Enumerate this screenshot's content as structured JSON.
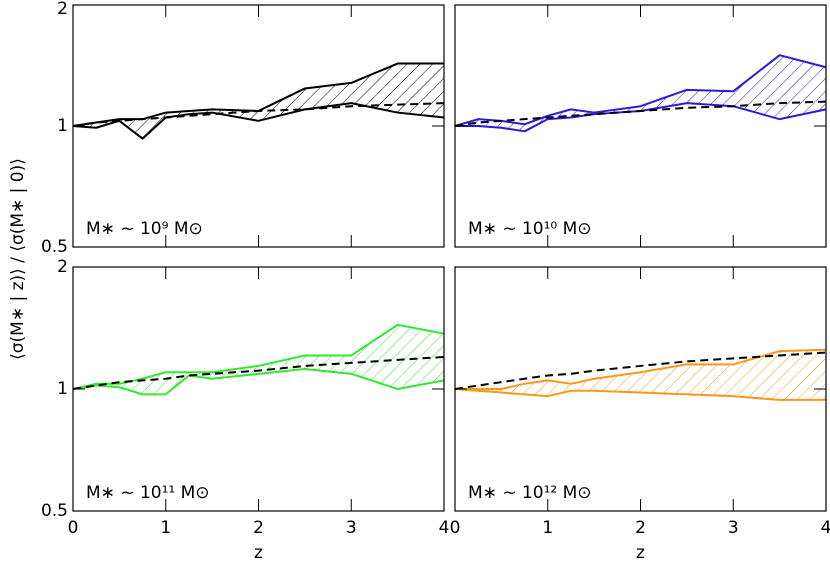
{
  "figure": {
    "ylabel": "⟨σ(M∗ | z)⟩ / ⟨σ(M∗ | 0)⟩"
  },
  "chart_data": [
    {
      "type": "band",
      "label": "M∗ ~ 10⁹ M⊙",
      "color": "#000000",
      "log_y": true,
      "x": [
        0,
        0.25,
        0.5,
        0.75,
        1,
        1.25,
        1.5,
        2,
        2.5,
        3,
        3.5,
        4
      ],
      "upper": [
        1,
        1.02,
        1.04,
        1.04,
        1.08,
        1.09,
        1.1,
        1.09,
        1.24,
        1.28,
        1.43,
        1.43
      ],
      "lower": [
        1,
        0.99,
        1.03,
        0.93,
        1.05,
        1.07,
        1.08,
        1.03,
        1.1,
        1.14,
        1.08,
        1.05
      ],
      "model": [
        1,
        1.02,
        1.03,
        1.04,
        1.05,
        1.06,
        1.07,
        1.09,
        1.1,
        1.12,
        1.13,
        1.14
      ],
      "xlim": [
        0,
        4
      ],
      "ylim": [
        0.5,
        2
      ],
      "yticks": [
        0.5,
        1,
        2
      ],
      "xticks": [
        0,
        1,
        2,
        3,
        4
      ]
    },
    {
      "type": "band",
      "label": "M∗ ~ 10¹⁰ M⊙",
      "color": "#2b1bd6",
      "log_y": true,
      "x": [
        0,
        0.25,
        0.5,
        0.75,
        1,
        1.25,
        1.5,
        2,
        2.5,
        3,
        3.5,
        4
      ],
      "upper": [
        1,
        1.04,
        1.03,
        1.01,
        1.06,
        1.1,
        1.08,
        1.12,
        1.23,
        1.22,
        1.5,
        1.4
      ],
      "lower": [
        1,
        1,
        0.99,
        0.97,
        1.04,
        1.05,
        1.07,
        1.09,
        1.14,
        1.12,
        1.04,
        1.1
      ],
      "model": [
        1,
        1.02,
        1.03,
        1.04,
        1.05,
        1.06,
        1.07,
        1.09,
        1.11,
        1.12,
        1.14,
        1.15
      ],
      "xlim": [
        0,
        4
      ],
      "ylim": [
        0.5,
        2
      ],
      "yticks": [
        0.5,
        1,
        2
      ],
      "xticks": [
        0,
        1,
        2,
        3,
        4
      ]
    },
    {
      "type": "band",
      "label": "M∗ ~ 10¹¹ M⊙",
      "color": "#33e633",
      "log_y": true,
      "xlabel": "z",
      "x": [
        0,
        0.25,
        0.5,
        0.75,
        1,
        1.25,
        1.5,
        2,
        2.5,
        3,
        3.5,
        4
      ],
      "upper": [
        1,
        1.03,
        1.03,
        1.06,
        1.1,
        1.1,
        1.1,
        1.14,
        1.21,
        1.21,
        1.44,
        1.37
      ],
      "lower": [
        1,
        1.02,
        1.01,
        0.97,
        0.97,
        1.08,
        1.06,
        1.09,
        1.12,
        1.09,
        1,
        1.05
      ],
      "model": [
        1,
        1.02,
        1.04,
        1.05,
        1.06,
        1.08,
        1.09,
        1.11,
        1.14,
        1.16,
        1.18,
        1.2
      ],
      "xlim": [
        0,
        4
      ],
      "ylim": [
        0.5,
        2
      ],
      "yticks": [
        0.5,
        1,
        2
      ],
      "xticks": [
        0,
        1,
        2,
        3,
        4
      ]
    },
    {
      "type": "band",
      "label": "M∗ ~ 10¹² M⊙",
      "color": "#f7981d",
      "log_y": true,
      "xlabel": "z",
      "x": [
        0,
        0.25,
        0.5,
        0.75,
        1,
        1.25,
        1.5,
        2,
        2.5,
        3,
        3.5,
        4
      ],
      "upper": [
        1,
        1,
        1,
        1.03,
        1.05,
        1.03,
        1.06,
        1.1,
        1.15,
        1.15,
        1.24,
        1.25
      ],
      "lower": [
        1,
        0.99,
        0.98,
        0.97,
        0.96,
        0.99,
        0.99,
        0.98,
        0.97,
        0.96,
        0.94,
        0.94
      ],
      "model": [
        1,
        1.02,
        1.04,
        1.06,
        1.08,
        1.09,
        1.11,
        1.14,
        1.17,
        1.19,
        1.21,
        1.23
      ],
      "xlim": [
        0,
        4
      ],
      "ylim": [
        0.5,
        2
      ],
      "yticks": [
        0.5,
        1,
        2
      ],
      "xticks": [
        0,
        1,
        2,
        3,
        4
      ]
    }
  ]
}
